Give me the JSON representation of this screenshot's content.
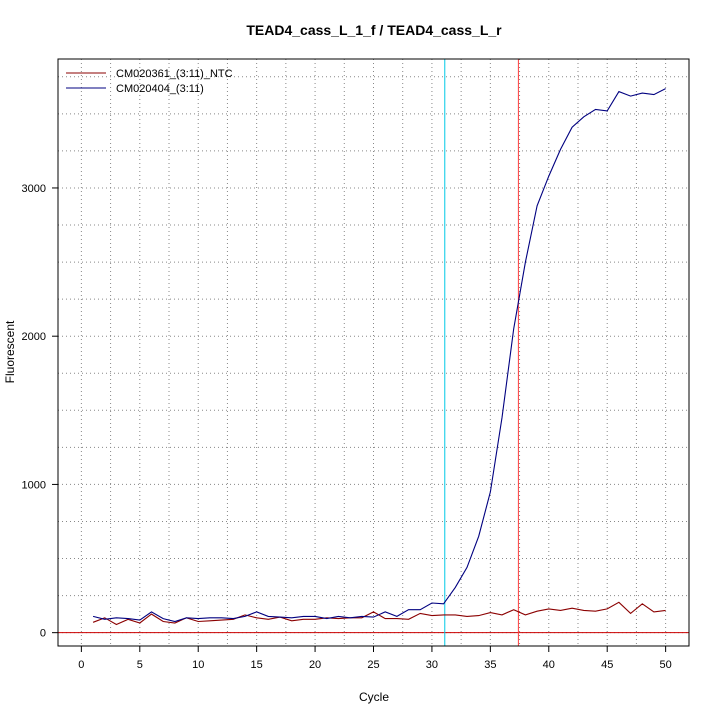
{
  "chart_data": {
    "type": "line",
    "title": "TEAD4_cass_L_1_f / TEAD4_cass_L_r",
    "xlabel": "Cycle",
    "ylabel": "Fluorescent",
    "xlim": [
      -2,
      52
    ],
    "ylim": [
      -90,
      3870
    ],
    "x_ticks": [
      "0",
      "5",
      "10",
      "15",
      "20",
      "25",
      "30",
      "35",
      "40",
      "45",
      "50"
    ],
    "y_ticks": [
      "0",
      "1000",
      "2000",
      "3000"
    ],
    "grid": true,
    "legend_position": "top-left",
    "vertical_lines": [
      {
        "x": 31.1,
        "color": "#00c8e6"
      },
      {
        "x": 37.4,
        "color": "#ff3b3b"
      }
    ],
    "threshold": {
      "y": 0,
      "color": "#cc0000"
    },
    "x": [
      1,
      2,
      3,
      4,
      5,
      6,
      7,
      8,
      9,
      10,
      11,
      12,
      13,
      14,
      15,
      16,
      17,
      18,
      19,
      20,
      21,
      22,
      23,
      24,
      25,
      26,
      27,
      28,
      29,
      30,
      31,
      32,
      33,
      34,
      35,
      36,
      37,
      38,
      39,
      40,
      41,
      42,
      43,
      44,
      45,
      46,
      47,
      48,
      49,
      50
    ],
    "series": [
      {
        "name": "CM020361_(3:11)_NTC",
        "color": "#8b0000",
        "values": [
          70,
          100,
          55,
          90,
          65,
          125,
          75,
          65,
          100,
          75,
          80,
          85,
          90,
          120,
          100,
          90,
          105,
          80,
          90,
          90,
          100,
          95,
          100,
          100,
          140,
          95,
          95,
          90,
          130,
          115,
          120,
          120,
          110,
          115,
          135,
          120,
          155,
          120,
          145,
          160,
          150,
          165,
          150,
          145,
          160,
          205,
          130,
          195,
          140,
          150
        ]
      },
      {
        "name": "CM020404_(3:11)",
        "color": "#000080",
        "values": [
          110,
          90,
          100,
          95,
          85,
          140,
          95,
          75,
          100,
          95,
          100,
          100,
          95,
          110,
          140,
          110,
          105,
          100,
          110,
          110,
          95,
          110,
          100,
          110,
          105,
          140,
          110,
          155,
          155,
          200,
          195,
          305,
          440,
          650,
          950,
          1450,
          2050,
          2500,
          2880,
          3080,
          3260,
          3410,
          3480,
          3530,
          3520,
          3650,
          3620,
          3640,
          3630,
          3670
        ]
      }
    ]
  }
}
